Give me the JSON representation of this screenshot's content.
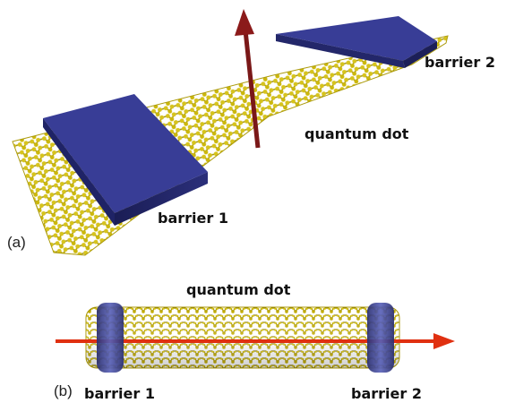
{
  "panel_a": {
    "panel_label": "(a)",
    "barrier_1_label": "barrier 1",
    "barrier_2_label": "barrier 2",
    "dot_label": "quantum dot"
  },
  "panel_b": {
    "panel_label": "(b)",
    "barrier_1_label": "barrier 1",
    "barrier_2_label": "barrier 2",
    "dot_label": "quantum dot"
  },
  "colors": {
    "atom": "#c9b400",
    "atom_dark": "#7a6a00",
    "barrier": "#2b2f7a",
    "barrier_top": "#3a3f9a",
    "arrow": "#8b1a1a",
    "arrow_b": "#e03010"
  }
}
